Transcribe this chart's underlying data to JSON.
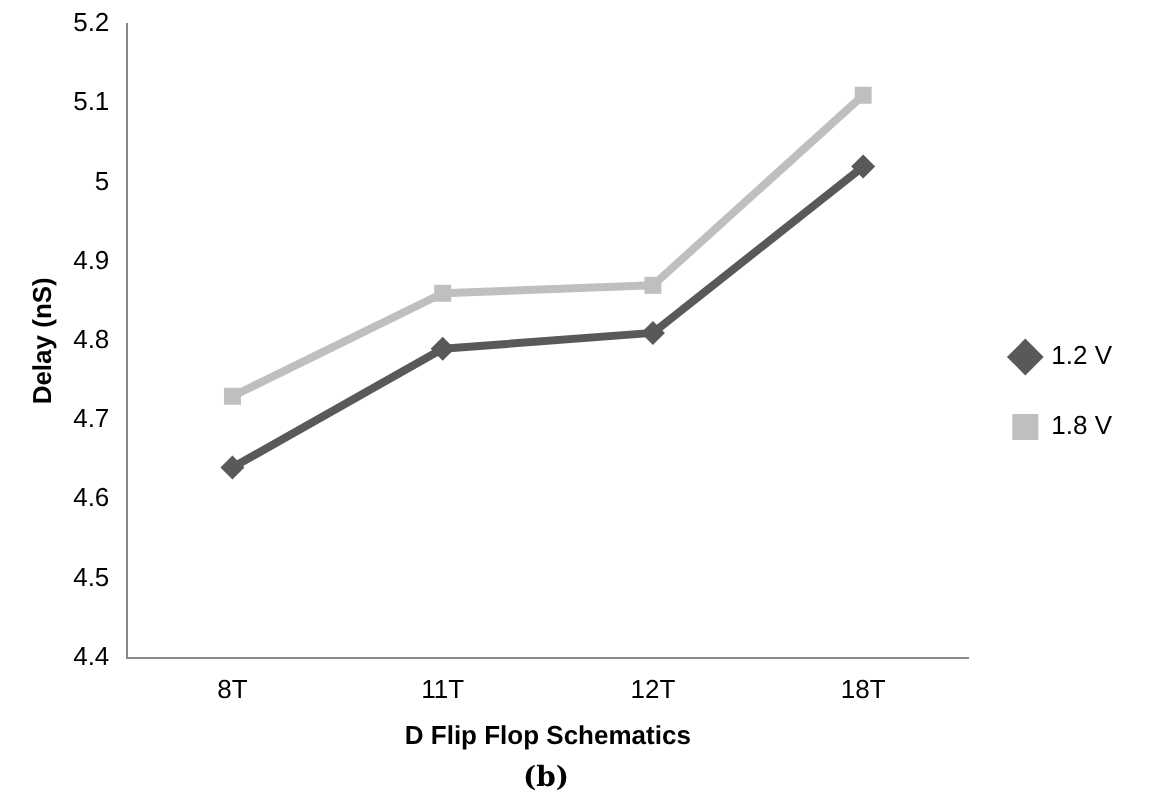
{
  "chart_data": {
    "type": "line",
    "xlabel": "D Flip Flop Schematics",
    "ylabel": "Delay (nS)",
    "categories": [
      "8T",
      "11T",
      "12T",
      "18T"
    ],
    "series": [
      {
        "name": "1.2 V",
        "color": "#595959",
        "marker": "diamond",
        "values": [
          4.64,
          4.79,
          4.81,
          5.02
        ]
      },
      {
        "name": "1.8 V",
        "color": "#bfbfbf",
        "marker": "square",
        "values": [
          4.73,
          4.86,
          4.87,
          5.11
        ]
      }
    ],
    "ylim": [
      4.4,
      5.2
    ],
    "yticks": [
      4.4,
      4.5,
      4.6,
      4.7,
      4.8,
      4.9,
      5,
      5.1,
      5.2
    ],
    "grid": false,
    "legend": "right",
    "line_style": "solid",
    "annotations": [
      "(b)"
    ]
  }
}
